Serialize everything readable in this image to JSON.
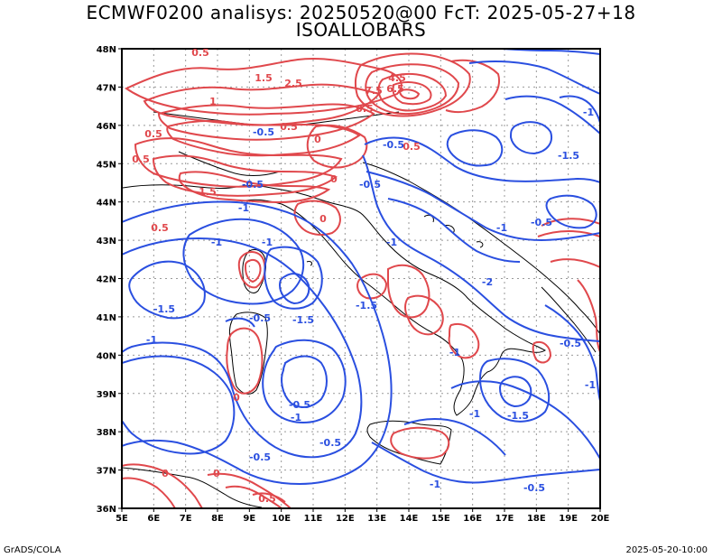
{
  "title": {
    "line1": "ECMWF0200 analisys: 20250520@00 FcT: 2025-05-27+18",
    "line2": "ISOALLOBARS"
  },
  "footer": {
    "left": "GrADS/COLA",
    "right": "2025-05-20-10:00"
  },
  "axes": {
    "lon_labels": [
      "5E",
      "6E",
      "7E",
      "8E",
      "9E",
      "10E",
      "11E",
      "12E",
      "13E",
      "14E",
      "15E",
      "16E",
      "17E",
      "18E",
      "19E",
      "20E"
    ],
    "lat_labels": [
      "36N",
      "37N",
      "38N",
      "39N",
      "40N",
      "41N",
      "42N",
      "43N",
      "44N",
      "45N",
      "46N",
      "47N",
      "48N"
    ],
    "lon_range": [
      5,
      20
    ],
    "lat_range": [
      36,
      48
    ],
    "grid": "dotted"
  },
  "colors": {
    "positive_contours": "#e0484c",
    "negative_contours": "#2a4fe0",
    "coastline": "#000000"
  },
  "contour_labels": {
    "positive": [
      "0.5",
      "1.5",
      "2.5",
      "4.5",
      "6.5",
      "7.5",
      "1",
      "0.5",
      "0.5",
      "1.5",
      "0.5",
      "0",
      "0",
      "0.5",
      "0.5",
      "0",
      "0",
      "0",
      "0.5",
      "0.5",
      "0"
    ],
    "negative": [
      "-0.5",
      "-1",
      "-0.5",
      "-1",
      "-1",
      "-0.5",
      "-1.5",
      "-1",
      "-1.5",
      "-0.5",
      "-1",
      "-0.5",
      "-1.5",
      "-2",
      "-1.5",
      "-1",
      "-0.5",
      "-1",
      "-0.5",
      "-0.5",
      "-1",
      "-1.5",
      "-1",
      "-0.5",
      "-1",
      "-0.5",
      "-0.5",
      "-1",
      "-1"
    ]
  }
}
